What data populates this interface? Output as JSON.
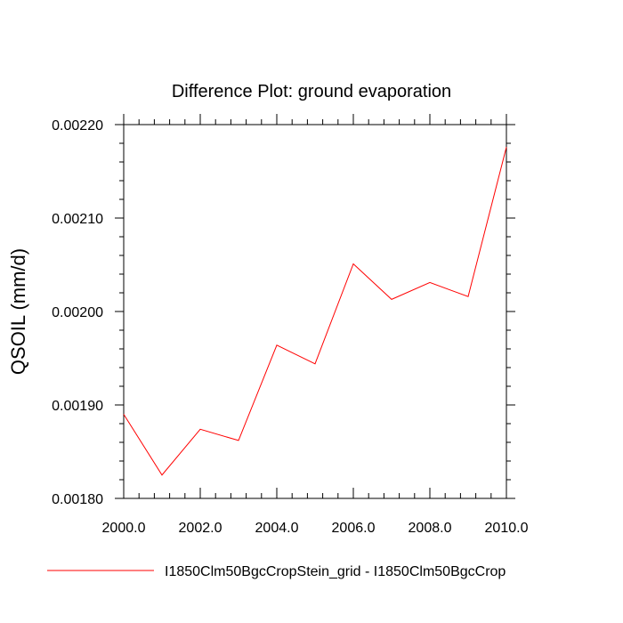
{
  "chart_data": {
    "type": "line",
    "title": "Difference Plot: ground evaporation",
    "xlabel": "",
    "ylabel": "QSOIL  (mm/d)",
    "xlim": [
      2000.0,
      2010.0
    ],
    "ylim": [
      0.0018,
      0.0022
    ],
    "x_ticks": [
      "2000.0",
      "2002.0",
      "2004.0",
      "2006.0",
      "2008.0",
      "2010.0"
    ],
    "y_ticks": [
      "0.00180",
      "0.00190",
      "0.00200",
      "0.00210",
      "0.00220"
    ],
    "grid": false,
    "legend_position": "bottom",
    "series": [
      {
        "name": "I1850Clm50BgcCropStein_grid - I1850Clm50BgcCrop",
        "color": "#ff0000",
        "x": [
          2000,
          2001,
          2002,
          2003,
          2004,
          2005,
          2006,
          2007,
          2008,
          2009,
          2010
        ],
        "values": [
          0.00189,
          0.001825,
          0.001874,
          0.001862,
          0.001964,
          0.001944,
          0.002051,
          0.002013,
          0.002031,
          0.002016,
          0.002176
        ]
      }
    ]
  }
}
